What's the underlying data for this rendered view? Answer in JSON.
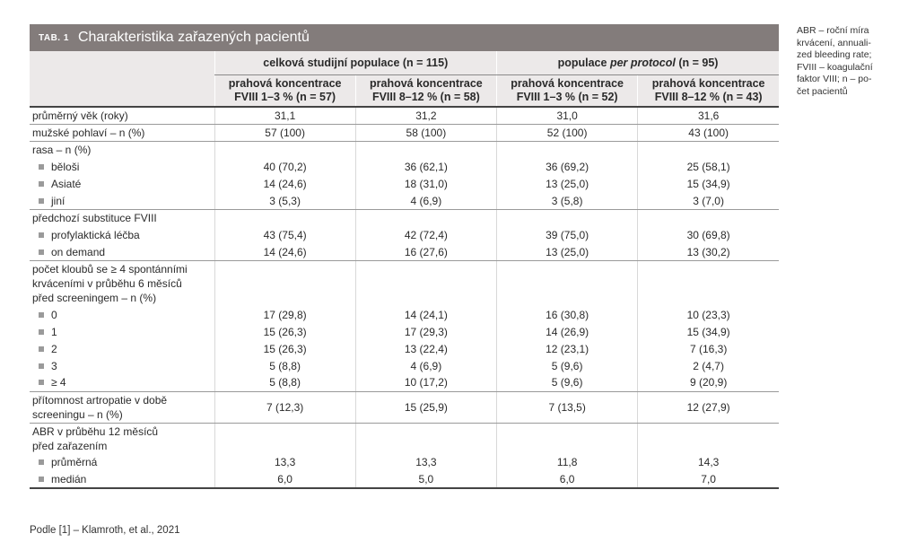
{
  "table": {
    "tag": "TAB. 1",
    "title": "Charakteristika zařazených pacientů",
    "group_total": "celková studijní populace (n = 115)",
    "group_pp_prefix": "populace ",
    "group_pp_italic": "per protocol",
    "group_pp_suffix": " (n = 95)",
    "col_line1": "prahová koncentrace",
    "cols": [
      "FVIII 1–3 % (n = 57)",
      "FVIII 8–12 % (n = 58)",
      "FVIII 1–3 % (n = 52)",
      "FVIII 8–12 % (n = 43)"
    ],
    "age": {
      "label": "průměrný věk (roky)",
      "v": [
        "31,1",
        "31,2",
        "31,0",
        "31,6"
      ]
    },
    "male": {
      "label": "mužské pohlaví – n (%)",
      "v": [
        "57 (100)",
        "58 (100)",
        "52 (100)",
        "43 (100)"
      ]
    },
    "race": {
      "label": "rasa – n (%)",
      "rows": [
        {
          "label": "běloši",
          "v": [
            "40 (70,2)",
            "36 (62,1)",
            "36 (69,2)",
            "25 (58,1)"
          ]
        },
        {
          "label": "Asiaté",
          "v": [
            "14 (24,6)",
            "18 (31,0)",
            "13 (25,0)",
            "15 (34,9)"
          ]
        },
        {
          "label": "jiní",
          "v": [
            "3 (5,3)",
            "4 (6,9)",
            "3 (5,8)",
            "3 (7,0)"
          ]
        }
      ]
    },
    "prior": {
      "label": "předchozí substituce FVIII",
      "rows": [
        {
          "label": "profylaktická léčba",
          "v": [
            "43 (75,4)",
            "42 (72,4)",
            "39 (75,0)",
            "30 (69,8)"
          ]
        },
        {
          "label": "on demand",
          "v": [
            "14 (24,6)",
            "16 (27,6)",
            "13 (25,0)",
            "13 (30,2)"
          ]
        }
      ]
    },
    "joints": {
      "label1": "počet kloubů se ≥ 4 spontánními",
      "label2": "krváceními v průběhu 6 měsíců",
      "label3": "před screeningem – n (%)",
      "rows": [
        {
          "label": "0",
          "v": [
            "17 (29,8)",
            "14 (24,1)",
            "16 (30,8)",
            "10 (23,3)"
          ]
        },
        {
          "label": "1",
          "v": [
            "15 (26,3)",
            "17 (29,3)",
            "14 (26,9)",
            "15 (34,9)"
          ]
        },
        {
          "label": "2",
          "v": [
            "15 (26,3)",
            "13 (22,4)",
            "12 (23,1)",
            "7 (16,3)"
          ]
        },
        {
          "label": "3",
          "v": [
            "5 (8,8)",
            "4 (6,9)",
            "5 (9,6)",
            "2 (4,7)"
          ]
        },
        {
          "label": "≥ 4",
          "v": [
            "5 (8,8)",
            "10 (17,2)",
            "5 (9,6)",
            "9 (20,9)"
          ]
        }
      ]
    },
    "arthro": {
      "label1": "přítomnost artropatie v době",
      "label2": "screeningu – n (%)",
      "v": [
        "7 (12,3)",
        "15 (25,9)",
        "7 (13,5)",
        "12 (27,9)"
      ]
    },
    "abr": {
      "label1": "ABR v průběhu 12 měsíců",
      "label2": "před zařazením",
      "rows": [
        {
          "label": "průměrná",
          "v": [
            "13,3",
            "13,3",
            "11,8",
            "14,3"
          ]
        },
        {
          "label": "medián",
          "v": [
            "6,0",
            "5,0",
            "6,0",
            "7,0"
          ]
        }
      ]
    }
  },
  "note": {
    "l1": "ABR – roční míra",
    "l2": "krvácení, annuali-",
    "l3": "zed bleeding rate;",
    "l4": "FVIII – koagulační",
    "l5": "faktor VIII; n – po-",
    "l6": "čet pacientů"
  },
  "source": "Podle [1] – Klamroth, et al., 2021"
}
